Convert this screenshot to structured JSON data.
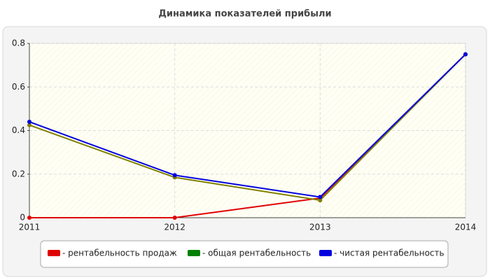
{
  "chart_data": {
    "type": "line",
    "title": "Динамика показателей прибыли",
    "categories": [
      "2011",
      "2012",
      "2013",
      "2014"
    ],
    "series": [
      {
        "name": "- рентабельность продаж",
        "color": "#e00000",
        "values": [
          0,
          0,
          0.09,
          0.75
        ]
      },
      {
        "name": "- общая рентабельность",
        "color": "#008000",
        "line_color": "#808000",
        "values": [
          0.425,
          0.185,
          0.08,
          0.75
        ]
      },
      {
        "name": "- чистая рентабельность",
        "color": "#0000e0",
        "values": [
          0.44,
          0.195,
          0.095,
          0.75
        ]
      }
    ],
    "ylim": [
      0,
      0.8
    ],
    "yticks": [
      0,
      0.2,
      0.4,
      0.6,
      0.8
    ],
    "grid": true
  }
}
